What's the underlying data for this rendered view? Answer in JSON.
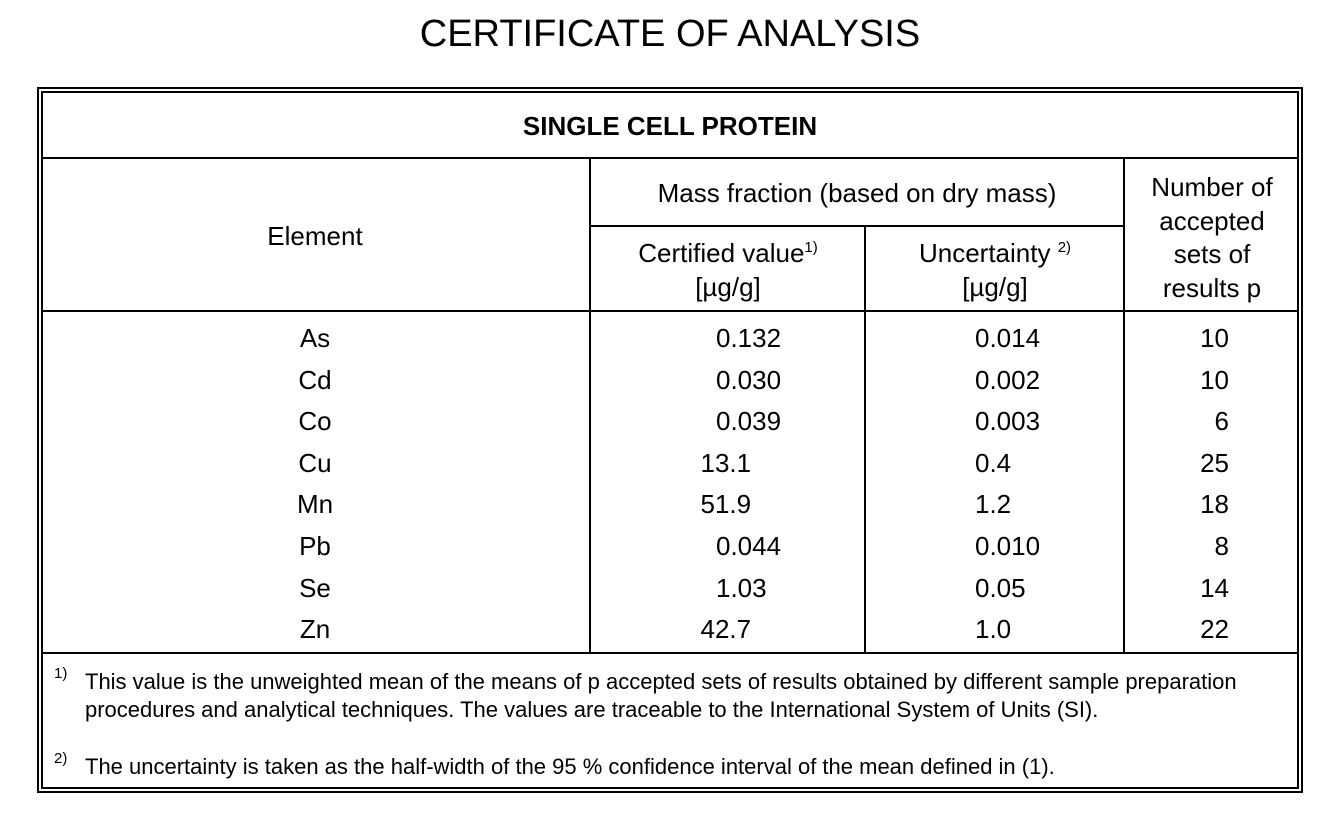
{
  "title": "CERTIFICATE OF ANALYSIS",
  "table": {
    "caption": "SINGLE CELL PROTEIN",
    "header": {
      "element": "Element",
      "group": "Mass fraction (based on dry mass)",
      "certified": {
        "text": "Certified value",
        "note": "1)",
        "unit": "[µg/g]"
      },
      "uncertainty": {
        "text": "Uncertainty ",
        "note": "2)",
        "unit": "[µg/g]"
      },
      "count": "Number of accepted sets of results p"
    },
    "rows": [
      [
        "As",
        "0.132",
        "0.014",
        "10"
      ],
      [
        "Cd",
        "0.030",
        "0.002",
        "10"
      ],
      [
        "Co",
        "0.039",
        "0.003",
        "6"
      ],
      [
        "Cu",
        "13.1",
        "0.4",
        "25"
      ],
      [
        "Mn",
        "51.9",
        "1.2",
        "18"
      ],
      [
        "Pb",
        "0.044",
        "0.010",
        "8"
      ],
      [
        "Se",
        "1.03",
        "0.05",
        "14"
      ],
      [
        "Zn",
        "42.7",
        "1.0",
        "22"
      ]
    ],
    "footnotes": [
      {
        "mark": "1)",
        "text": "This value is the unweighted mean of the means of p accepted sets of results obtained by different sample preparation procedures and analytical techniques. The values are traceable to the International System of Units (SI)."
      },
      {
        "mark": "2)",
        "text": "The uncertainty is taken as the half-width of the 95 % confidence interval of the mean defined in (1)."
      }
    ]
  }
}
